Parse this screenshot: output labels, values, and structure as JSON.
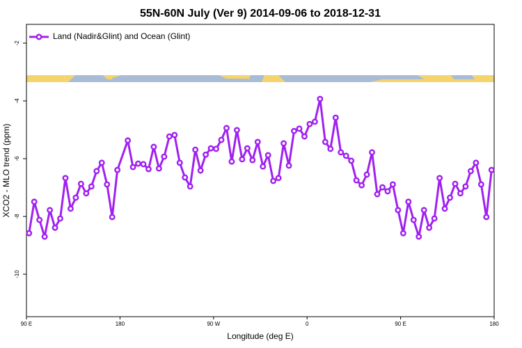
{
  "chart_data": {
    "type": "line",
    "title": "55N-60N July (Ver 9)   2014-09-06 to 2018-12-31",
    "x_label": "Longitude (deg E)",
    "y_label": "XCO2 - MLO trend (ppm)",
    "x": [
      92.5,
      97.5,
      102.5,
      107.5,
      112.5,
      117.5,
      122.5,
      127.5,
      132.5,
      137.5,
      142.5,
      147.5,
      152.5,
      157.5,
      162.5,
      167.5,
      172.5,
      177.5,
      187.5,
      192.5,
      197.5,
      202.5,
      207.5,
      212.5,
      217.5,
      222.5,
      227.5,
      232.5,
      237.5,
      242.5,
      247.5,
      252.5,
      257.5,
      262.5,
      267.5,
      272.5,
      277.5,
      282.5,
      287.5,
      292.5,
      297.5,
      302.5,
      307.5,
      312.5,
      317.5,
      322.5,
      327.5,
      332.5,
      337.5,
      342.5,
      347.5,
      352.5,
      357.5,
      362.5,
      367.5,
      372.5,
      377.5,
      382.5,
      387.5,
      392.5,
      397.5,
      402.5,
      407.5,
      412.5,
      417.5,
      422.5,
      427.5,
      432.5,
      437.5,
      442.5,
      447.5,
      452.5,
      457.5,
      462.5,
      467.5,
      472.5,
      477.5,
      482.5,
      487.5,
      492.5,
      497.5,
      502.5,
      507.5,
      512.5,
      517.5,
      522.5,
      527.5,
      532.5,
      537.5
    ],
    "series": [
      {
        "name": "Land (Nadir&Glint) and Ocean (Glint)",
        "color": "#a020f0",
        "values": [
          -8.58,
          -7.49,
          -8.12,
          -8.7,
          -7.78,
          -8.39,
          -8.07,
          -6.67,
          -7.73,
          -7.35,
          -6.87,
          -7.2,
          -6.96,
          -6.43,
          -6.14,
          -6.89,
          -8.02,
          -6.39,
          -5.37,
          -6.29,
          -6.17,
          -6.19,
          -6.36,
          -5.59,
          -6.34,
          -5.93,
          -5.23,
          -5.18,
          -6.14,
          -6.65,
          -6.96,
          -5.69,
          -6.41,
          -5.86,
          -5.64,
          -5.66,
          -5.35,
          -4.94,
          -6.1,
          -5.01,
          -6.02,
          -5.64,
          -6.05,
          -5.42,
          -6.27,
          -5.88,
          -6.77,
          -6.67,
          -5.47,
          -6.24,
          -5.04,
          -4.96,
          -5.23,
          -4.8,
          -4.72,
          -3.93,
          -5.42,
          -5.66,
          -4.58,
          -5.78,
          -5.9,
          -6.07,
          -6.75,
          -6.92,
          -6.55,
          -5.78,
          -7.23,
          -6.99,
          -7.13,
          -6.89,
          -7.78,
          -8.58,
          -7.49,
          -8.12,
          -8.7,
          -7.78,
          -8.39,
          -8.07,
          -6.67,
          -7.73,
          -7.35,
          -6.87,
          -7.2,
          -6.96,
          -6.43,
          -6.14,
          -6.89,
          -8.02,
          -6.39
        ]
      }
    ],
    "xlim": [
      90,
      540
    ],
    "xticks": [
      {
        "value": 90,
        "label": "90 E"
      },
      180,
      {
        "value": 270,
        "label": "90 W"
      },
      {
        "value": 360,
        "label": "0"
      },
      {
        "value": 450,
        "label": "90 E"
      },
      {
        "value": 540,
        "label": "180"
      }
    ],
    "ylim": [
      -11.47,
      -1.35
    ],
    "yticks": [
      -2,
      -4,
      -6,
      -8,
      -10
    ],
    "legend": "top-left"
  }
}
